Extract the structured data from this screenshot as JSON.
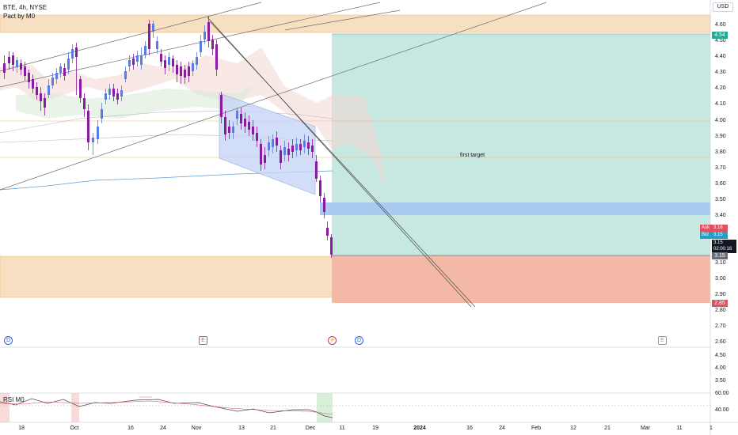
{
  "symbol_header": "BTE, 4h, NYSE",
  "indicator_header": "Pact by M0",
  "currency": "USD",
  "annotation": "first target",
  "rsi_label": "RSI M0",
  "price_axis": {
    "ticks": [
      "4.60",
      "4.50",
      "4.40",
      "4.30",
      "4.20",
      "4.10",
      "4.00",
      "3.90",
      "3.80",
      "3.70",
      "3.60",
      "3.50",
      "3.40",
      "3.10",
      "3.00",
      "2.90",
      "2.80",
      "2.70",
      "2.60"
    ],
    "tags": {
      "target": "4.54",
      "ask_label": "Ask",
      "ask": "3.16",
      "bid_label": "Bid",
      "bid": "3.15",
      "last": "3.15",
      "countdown": "02:00:16",
      "line": "3.15",
      "stop": "2.85"
    }
  },
  "volume_axis": [
    "4.50",
    "4.00",
    "3.50"
  ],
  "rsi_axis": [
    "60.00",
    "40.00"
  ],
  "time_axis": [
    "18",
    "Oct",
    "16",
    "24",
    "Nov",
    "13",
    "21",
    "Dec",
    "11",
    "19",
    "2024",
    "16",
    "24",
    "Feb",
    "12",
    "21",
    "Mar",
    "11",
    "1"
  ],
  "event_markers": [
    "D",
    "E",
    "D",
    "E"
  ],
  "colors": {
    "up": "#5b7ce0",
    "down": "#8b1aa3",
    "profit": "#bfe3dc",
    "loss": "#f2b8a6",
    "zone": "#f6ddb9",
    "entry": "#a8cbef",
    "axis_text": "#131722"
  }
}
